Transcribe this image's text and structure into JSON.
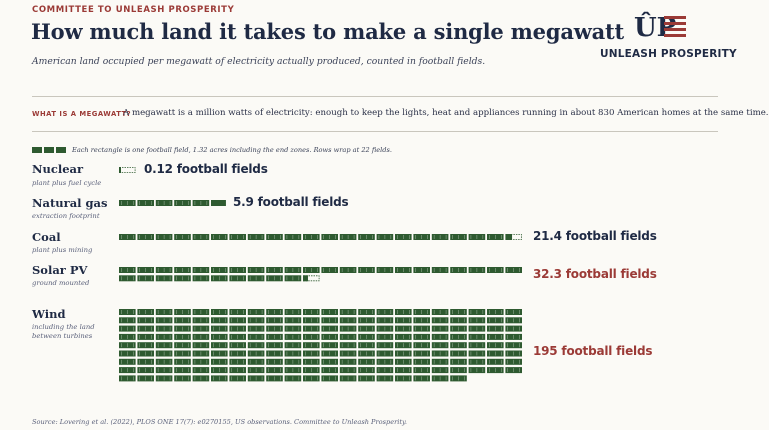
{
  "header": {
    "kicker": "COMMITTEE TO UNLEASH PROSPERITY",
    "title": "How much land it takes to make a single megawatt",
    "subtitle": "American land occupied per megawatt of electricity actually produced, counted in football fields."
  },
  "logo": {
    "mark_text": "ÛP",
    "name": "UNLEASH PROSPERITY"
  },
  "definition": {
    "label": "WHAT IS A MEGAWATT?",
    "text": "A megawatt is a million watts of electricity: enough to keep the lights, heat and appliances running in about 830 American homes at the same time."
  },
  "legend": {
    "note": "Each rectangle is one football field, 1.32 acres including the end zones. Rows wrap at 22 fields."
  },
  "source": "Source: Lovering et al. (2022), PLOS ONE 17(7): e0270155, US observations. Committee to Unleash Prosperity.",
  "colors": {
    "field_fill": "#2e5a30",
    "field_line": "#ffffff",
    "accent": "#9b3a36",
    "navy": "#1f2a44"
  },
  "chart_data": {
    "type": "pictograph",
    "unit": "football field",
    "wrap": 22,
    "categories": [
      {
        "name": "Nuclear",
        "sublabel": "plant plus fuel cycle",
        "value": 0.12,
        "value_label": "0.12 football fields",
        "highlight": false
      },
      {
        "name": "Natural gas",
        "sublabel": "extraction footprint",
        "value": 5.9,
        "value_label": "5.9 football fields",
        "highlight": false
      },
      {
        "name": "Coal",
        "sublabel": "plant plus mining",
        "value": 21.4,
        "value_label": "21.4 football fields",
        "highlight": false
      },
      {
        "name": "Solar PV",
        "sublabel": "ground mounted",
        "value": 32.3,
        "value_label": "32.3 football fields",
        "highlight": true
      },
      {
        "name": "Wind",
        "sublabel": "including the land between turbines",
        "value": 195,
        "value_label": "195 football fields",
        "highlight": true
      }
    ]
  }
}
